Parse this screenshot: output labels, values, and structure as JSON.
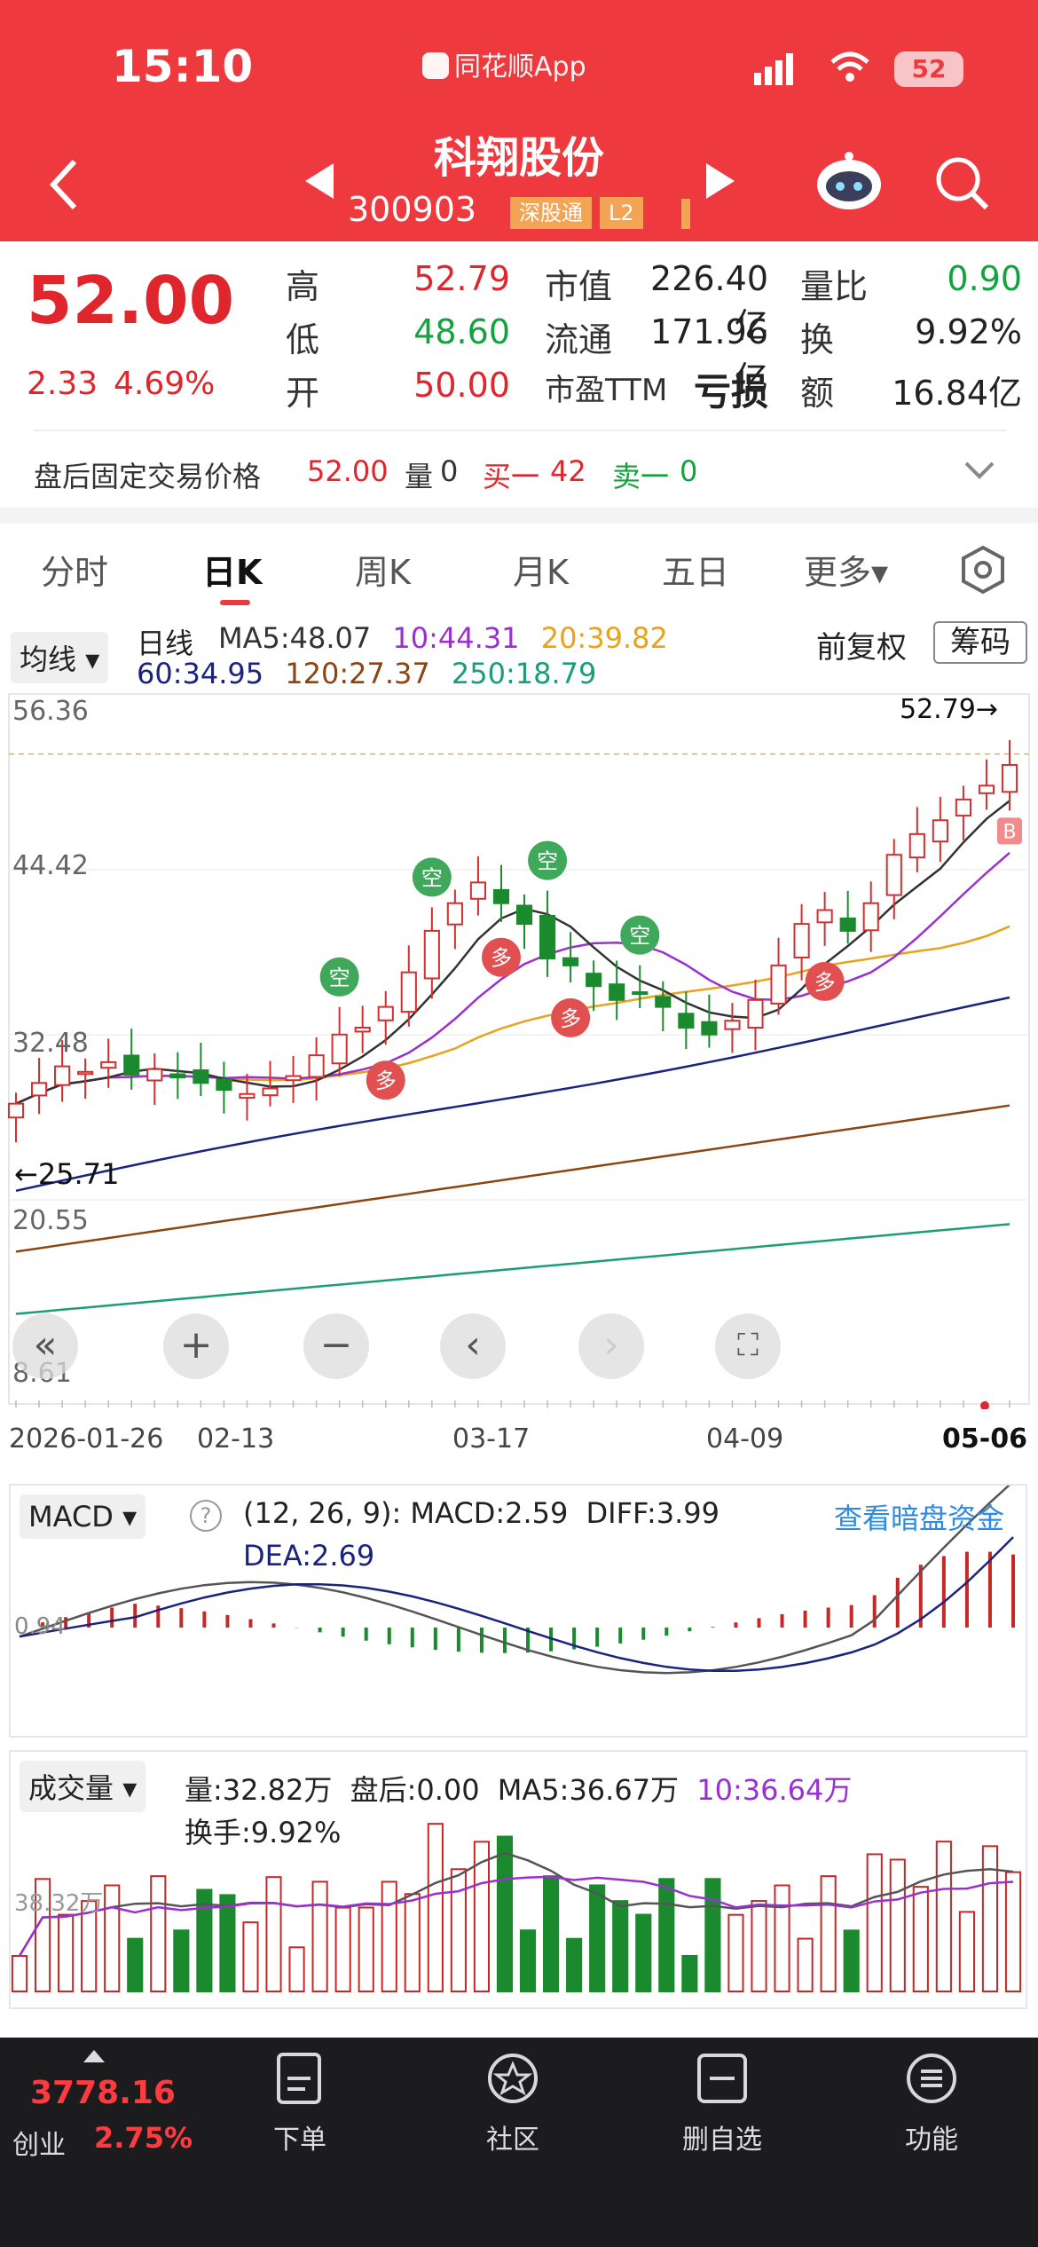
{
  "status": {
    "time": "15:10",
    "app_name": "同花顺App",
    "battery": "52"
  },
  "stock": {
    "name": "科翔股份",
    "code": "300903",
    "tags": [
      "深股通",
      "L2"
    ]
  },
  "quote": {
    "price": "52.00",
    "change": "2.33",
    "change_pct": "4.69%",
    "high_label": "高",
    "high": "52.79",
    "low_label": "低",
    "low": "48.60",
    "open_label": "开",
    "open": "50.00",
    "mcap_label": "市值",
    "mcap": "226.40亿",
    "float_label": "流通",
    "float": "171.96亿",
    "pe_label": "市盈TTM",
    "pe": "亏损",
    "vol_ratio_label": "量比",
    "vol_ratio": "0.90",
    "turnover_label": "换",
    "turnover": "9.92%",
    "amount_label": "额",
    "amount": "16.84亿"
  },
  "after_hours": {
    "label": "盘后固定交易价格",
    "price": "52.00",
    "vol_label": "量",
    "vol": "0",
    "buy_label": "买一",
    "buy": "42",
    "sell_label": "卖一",
    "sell": "0"
  },
  "tabs": [
    "分时",
    "日K",
    "周K",
    "月K",
    "五日",
    "更多▾"
  ],
  "kline": {
    "ma_selector": "均线",
    "line_type": "日线",
    "ma_row1": [
      {
        "t": "MA5:48.07",
        "c": "#333333"
      },
      {
        "t": "10:44.31",
        "c": "#9b30d0"
      },
      {
        "t": "20:39.82",
        "c": "#e9a21b"
      }
    ],
    "ma_row2": [
      {
        "t": "60:34.95",
        "c": "#1a237e"
      },
      {
        "t": "120:27.37",
        "c": "#8b4513"
      },
      {
        "t": "250:18.79",
        "c": "#1b9e77"
      }
    ],
    "adjust": "前复权",
    "chip_button": "筹码",
    "y_labels": [
      "56.36",
      "44.42",
      "32.48",
      "20.55",
      "8.61"
    ],
    "y_range": [
      8.61,
      56.36
    ],
    "max_label": "52.79→",
    "min_label": "←25.71",
    "x_labels": [
      "2026-01-26",
      "02-13",
      "03-17",
      "04-09",
      "05-06"
    ],
    "signals": [
      "空",
      "空",
      "空",
      "空",
      "多",
      "多",
      "多",
      "多",
      "B"
    ]
  },
  "macd": {
    "selector": "MACD",
    "params": "(12, 26, 9):",
    "macd": "MACD:2.59",
    "diff": "DIFF:3.99",
    "dea": "DEA:2.69",
    "link": "查看暗盘资金",
    "zero_label": "0.94"
  },
  "volume": {
    "selector": "成交量",
    "vol": "量:32.82万",
    "after": "盘后:0.00",
    "ma5": "MA5:36.67万",
    "ma10": "10:36.64万",
    "turnover": "换手:9.92%",
    "y_label": "38.32万"
  },
  "bottom_nav": {
    "index_value": "3778.16",
    "index_name": "创业",
    "index_pct": "2.75%",
    "items": [
      "下单",
      "社区",
      "删自选",
      "功能"
    ]
  },
  "chart_data": {
    "type": "candlestick",
    "title": "",
    "ylim": [
      8.61,
      56.36
    ],
    "x_ticks": [
      "2026-01-26",
      "02-13",
      "03-17",
      "04-09",
      "05-06"
    ],
    "closes_approx": [
      27.5,
      29.0,
      30.2,
      29.8,
      30.5,
      29.6,
      30.0,
      29.4,
      29.0,
      28.5,
      28.2,
      28.6,
      29.5,
      31.0,
      32.5,
      33.0,
      34.5,
      37.0,
      40.0,
      42.0,
      43.5,
      42.0,
      40.5,
      38.0,
      37.5,
      36.0,
      35.0,
      35.5,
      34.5,
      33.0,
      32.5,
      33.5,
      35.0,
      37.5,
      40.5,
      41.5,
      40.0,
      42.0,
      45.5,
      47.0,
      48.0,
      49.5,
      50.5,
      52.0
    ],
    "max_price": 52.79,
    "min_price": 25.71
  }
}
